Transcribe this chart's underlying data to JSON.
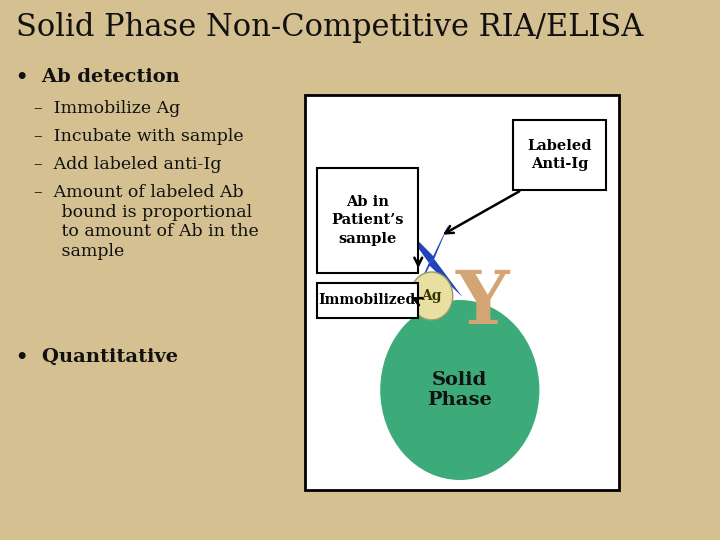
{
  "title": "Solid Phase Non-Competitive RIA/ELISA",
  "background_color": "#D4C090",
  "title_color": "#111111",
  "diagram": {
    "box_facecolor": "#ffffff",
    "box_edgecolor": "#000000",
    "label_ab_in": "Ab in\nPatient’s\nsample",
    "label_immobilized": "Immobilized",
    "label_labeled_anti_ig": "Labeled\nAnti-Ig",
    "label_ag": "Ag",
    "label_solid_phase": "Solid\nPhase",
    "ag_color": "#E8DFA0",
    "solid_phase_color": "#3DAA7A",
    "antibody_y_color": "#D4A574",
    "blue_shape_color": "#2244BB",
    "arrow_color": "#111111"
  }
}
